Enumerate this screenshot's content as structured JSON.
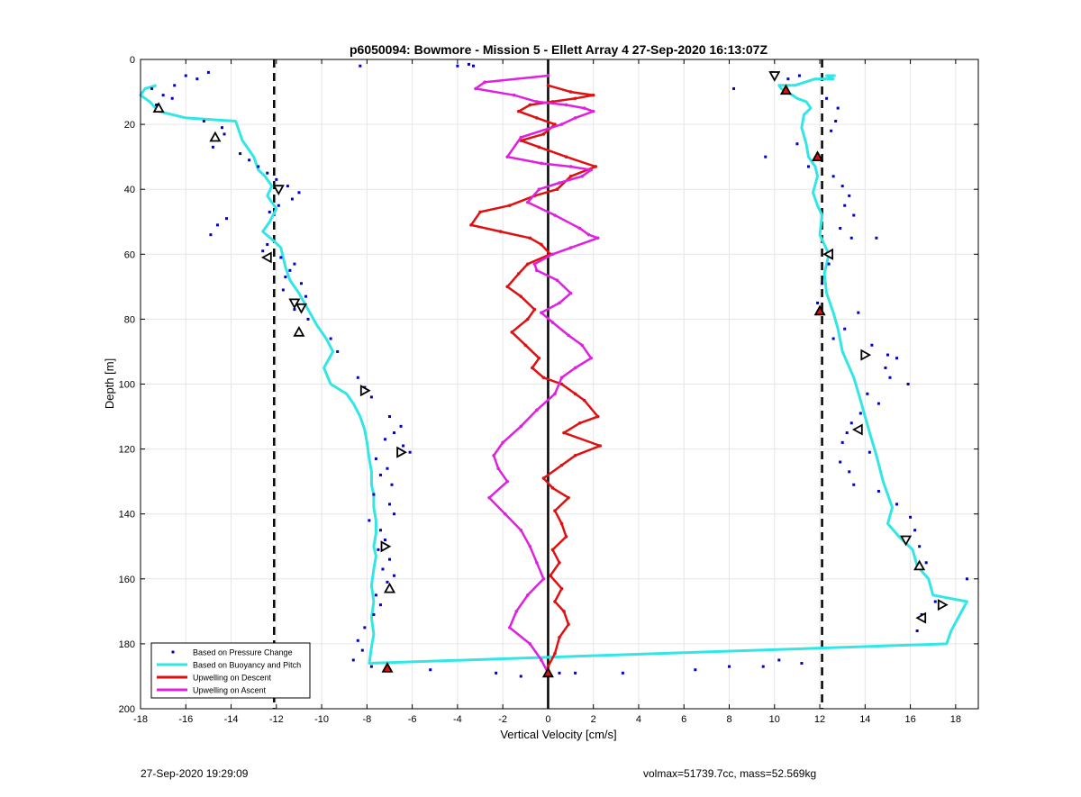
{
  "footer": {
    "timestamp": "27-Sep-2020 19:29:09",
    "params": "volmax=51739.7cc, mass=52.569kg"
  },
  "chart_data": {
    "type": "line",
    "title": "p6050094: Bowmore - Mission 5 - Ellett Array 4 27-Sep-2020 16:13:07Z",
    "xlabel": "Vertical Velocity [cm/s]",
    "ylabel": "Depth [m]",
    "xlim": [
      -18,
      19
    ],
    "ylim": [
      0,
      200
    ],
    "y_reversed": true,
    "grid": true,
    "xticks": [
      -18,
      -16,
      -14,
      -12,
      -10,
      -8,
      -6,
      -4,
      -2,
      0,
      2,
      4,
      6,
      8,
      10,
      12,
      14,
      16,
      18
    ],
    "yticks": [
      0,
      20,
      40,
      60,
      80,
      100,
      120,
      140,
      160,
      180,
      200
    ],
    "legend_position": "bottom-left",
    "colors": {
      "pressure": "#0000cc",
      "buoyancy": "#33e6e6",
      "descent": "#e01010",
      "ascent": "#e020e0"
    },
    "reference_lines": [
      {
        "x": -12.1,
        "style": "dashed"
      },
      {
        "x": 12.1,
        "style": "dashed"
      },
      {
        "x": 0,
        "style": "solid"
      }
    ],
    "series": [
      {
        "name": "Based on Pressure Change",
        "style": "markers",
        "x": [
          -8.3,
          -15,
          -16,
          -15.5,
          -16.5,
          -17.5,
          -17,
          -16.6,
          -17.3,
          -15.2,
          -14.4,
          -14.3,
          -14.8,
          -13.6,
          -13.2,
          -12.8,
          -12.4,
          -12.0,
          -11.5,
          -11.0,
          -11.3,
          -11.9,
          -12.3,
          -14.2,
          -14.6,
          -14.9,
          -12.4,
          -12.6,
          -11.8,
          -11.2,
          -11.4,
          -11.6,
          -10.9,
          -11.7,
          -10.7,
          -11.2,
          -10.6,
          -9.6,
          -9.3,
          -8.4,
          -8.1,
          -7.8,
          -7.0,
          -6.5,
          -6.8,
          -7.2,
          -6.4,
          -6.1,
          -7.6,
          -7.1,
          -7.4,
          -6.9,
          -7.7,
          -7.0,
          -6.8,
          -7.9,
          -7.4,
          -7.2,
          -7.5,
          -7.0,
          -7.3,
          -6.8,
          -7.1,
          -7.6,
          -7.4,
          -7.7,
          -8.1,
          -8.4,
          -8.2,
          -8.6,
          -7.8,
          -5.2,
          -2.3,
          -1.2,
          0.5,
          1.2,
          3.3,
          6.5,
          8.0,
          9.5,
          11.2,
          10.2,
          9.9,
          11.1,
          10.6,
          8.2,
          12.3,
          12.8,
          12.7,
          12.5,
          11.0,
          9.6,
          11.5,
          12.6,
          13.0,
          13.3,
          13.1,
          13.5,
          12.9,
          13.4,
          14.5,
          12.4,
          12.1,
          11.9,
          13.7,
          13.1,
          12.6,
          14.3,
          15.0,
          15.4,
          14.9,
          15.1,
          15.9,
          14.1,
          14.6,
          13.8,
          13.4,
          13.2,
          13.0,
          14.2,
          12.9,
          13.3,
          13.5,
          14.6,
          15.4,
          16.0,
          16.2,
          16.4,
          16.7,
          18.5,
          17.1,
          16.5,
          16.3,
          -4.0,
          -3.5,
          -3.3
        ],
        "y": [
          2,
          4,
          5,
          6,
          8,
          9,
          11,
          12,
          14,
          19,
          21,
          23,
          27,
          29,
          31,
          33,
          35,
          37,
          39,
          41,
          43,
          45,
          47,
          49,
          51,
          54,
          57,
          59,
          61,
          63,
          65,
          67,
          69,
          71,
          73,
          77,
          80,
          86,
          90,
          98,
          101,
          104,
          110,
          113,
          115,
          117,
          119,
          121,
          123,
          126,
          128,
          131,
          134,
          137,
          140,
          142,
          145,
          148,
          151,
          154,
          157,
          159,
          161,
          165,
          168,
          171,
          175,
          179,
          182,
          185,
          187,
          188,
          189,
          190,
          189,
          189,
          189,
          188,
          187,
          187,
          186,
          185,
          4,
          5,
          6,
          9,
          12,
          15,
          19,
          22,
          26,
          30,
          33,
          36,
          39,
          42,
          45,
          48,
          52,
          55,
          55,
          63,
          69,
          75,
          78,
          83,
          86,
          88,
          91,
          92,
          95,
          98,
          100,
          103,
          106,
          109,
          112,
          115,
          118,
          121,
          124,
          127,
          131,
          133,
          137,
          141,
          145,
          150,
          155,
          160,
          167,
          171,
          176,
          2,
          1.5,
          2
        ]
      },
      {
        "name": "Based on Buoyancy and Pitch",
        "style": "line",
        "x": [
          -17.3,
          -17.8,
          -18.0,
          -17.6,
          -17.2,
          -16.0,
          -13.8,
          -13.5,
          -13.0,
          -12.8,
          -12.5,
          -12.2,
          -12.4,
          -12.0,
          -12.3,
          -12.6,
          -12.1,
          -11.8,
          -11.6,
          -11.4,
          -11.0,
          -10.6,
          -10.2,
          -9.8,
          -9.5,
          -9.9,
          -9.6,
          -8.9,
          -8.6,
          -8.3,
          -8.1,
          -8.0,
          -7.9,
          -7.8,
          -7.8,
          -7.7,
          -7.7,
          -7.6,
          -7.6,
          -7.7,
          -7.6,
          -7.7,
          -7.8,
          -7.7,
          -7.8,
          -7.7,
          -7.8,
          -7.9,
          17.6,
          17.8,
          18.5,
          17.0,
          16.8,
          16.3,
          16.1,
          15.5,
          15.0,
          15.2,
          14.8,
          14.5,
          14.2,
          14.0,
          13.8,
          13.5,
          13.0,
          12.8,
          12.6,
          12.3,
          12.2,
          12.4,
          12.0,
          12.1,
          11.9,
          11.7,
          11.9,
          11.8,
          11.5,
          11.4,
          11.2,
          11.3,
          11.6,
          11.4,
          11.0,
          10.8,
          10.5,
          10.3,
          10.2,
          10.9,
          11.8,
          12.6,
          12.3,
          12.7
        ],
        "y": [
          8,
          9,
          11,
          13,
          16,
          18,
          19,
          25,
          30,
          34,
          36,
          39,
          42,
          46,
          50,
          53,
          56,
          58,
          64,
          68,
          72,
          77,
          82,
          86,
          90,
          95,
          100,
          103,
          106,
          110,
          114,
          118,
          123,
          127,
          131,
          134,
          138,
          142,
          146,
          150,
          153,
          157,
          162,
          167,
          172,
          177,
          181,
          186,
          180,
          176,
          167,
          165,
          160,
          156,
          151,
          147,
          143,
          138,
          130,
          122,
          115,
          110,
          105,
          98,
          90,
          83,
          78,
          72,
          66,
          60,
          54,
          48,
          45,
          41,
          36,
          33,
          30,
          26,
          21,
          17,
          15,
          13,
          12,
          11,
          10,
          9,
          8,
          8,
          6,
          6,
          5,
          5
        ]
      },
      {
        "name": "Upwelling on Descent",
        "style": "line-markers",
        "x": [
          0,
          1.0,
          2.0,
          1.2,
          0.2,
          -0.8,
          -1.3,
          -0.5,
          0.3,
          -0.2,
          -1.2,
          -0.4,
          0.8,
          2.1,
          1.0,
          0.4,
          -0.6,
          -1.7,
          -3.0,
          -3.4,
          -2.1,
          -0.8,
          -0.3,
          0.1,
          -0.9,
          -1.3,
          -1.8,
          -1.2,
          -0.6,
          -0.9,
          -1.6,
          -1.0,
          -0.4,
          -0.7,
          -0.2,
          0.6,
          1.2,
          1.6,
          2.2,
          1.4,
          0.7,
          2.3,
          1.2,
          0.6,
          -0.2,
          0.2,
          0.9,
          0.3,
          0.6,
          0.8,
          0.2,
          0.5,
          0.1,
          0.6,
          0.3,
          0.7,
          0.9,
          0.5,
          0.3,
          0.0
        ],
        "y": [
          8,
          10,
          11,
          12,
          13,
          14,
          16,
          18,
          20,
          23,
          25,
          27,
          30,
          33,
          36,
          40,
          42,
          45,
          47,
          51,
          53,
          55,
          57,
          60,
          63,
          66,
          70,
          73,
          77,
          80,
          84,
          88,
          92,
          95,
          98,
          100,
          103,
          105,
          110,
          112,
          115,
          119,
          122,
          125,
          129,
          132,
          135,
          139,
          143,
          147,
          151,
          155,
          159,
          163,
          167,
          170,
          174,
          178,
          183,
          187
        ]
      },
      {
        "name": "Upwelling on Ascent",
        "style": "line-markers",
        "x": [
          0,
          -2.8,
          -3.2,
          -1.5,
          -0.5,
          0.8,
          1.6,
          2.0,
          1.2,
          0.6,
          -1.2,
          -1.8,
          -0.3,
          1.0,
          1.9,
          1.5,
          0.5,
          -0.4,
          -0.9,
          0.3,
          1.4,
          1.8,
          2.2,
          1.0,
          0.2,
          -0.6,
          -0.5,
          0.4,
          1.0,
          0.5,
          -0.3,
          0.2,
          0.9,
          1.5,
          1.9,
          1.2,
          0.6,
          0.3,
          -0.5,
          -1.2,
          -2.0,
          -2.4,
          -2.2,
          -1.8,
          -2.6,
          -1.9,
          -1.2,
          -0.8,
          -0.5,
          -0.2,
          -0.9,
          -1.4,
          -1.7,
          -0.8,
          -0.3,
          0.0
        ],
        "y": [
          5,
          7,
          9,
          11,
          13,
          14,
          15,
          16,
          18,
          20,
          24,
          30,
          32,
          33,
          34,
          36,
          38,
          40,
          44,
          48,
          52,
          54,
          55,
          58,
          60,
          63,
          65,
          68,
          72,
          75,
          78,
          81,
          85,
          88,
          92,
          95,
          98,
          103,
          108,
          113,
          118,
          122,
          126,
          130,
          135,
          140,
          145,
          150,
          155,
          160,
          165,
          170,
          175,
          180,
          185,
          189
        ]
      }
    ],
    "markers": [
      {
        "x": 10.0,
        "y": 5,
        "shape": "triangle-down",
        "fill": "#ffffff"
      },
      {
        "x": 10.5,
        "y": 9.5,
        "shape": "triangle-up",
        "fill": "#e01010"
      },
      {
        "x": -17.2,
        "y": 15,
        "shape": "triangle-up",
        "fill": "#ffffff"
      },
      {
        "x": -14.7,
        "y": 24,
        "shape": "triangle-up",
        "fill": "#ffffff"
      },
      {
        "x": 11.9,
        "y": 30,
        "shape": "triangle-up",
        "fill": "#e01010"
      },
      {
        "x": -11.9,
        "y": 40,
        "shape": "triangle-down",
        "fill": "#ffffff"
      },
      {
        "x": -12.4,
        "y": 61,
        "shape": "triangle-left",
        "fill": "#ffffff"
      },
      {
        "x": 12.4,
        "y": 60,
        "shape": "triangle-left",
        "fill": "#ffffff"
      },
      {
        "x": -11.2,
        "y": 75,
        "shape": "triangle-down",
        "fill": "#ffffff"
      },
      {
        "x": -10.9,
        "y": 76.5,
        "shape": "triangle-down",
        "fill": "#ffffff"
      },
      {
        "x": -11.0,
        "y": 84,
        "shape": "triangle-up",
        "fill": "#ffffff"
      },
      {
        "x": 12.0,
        "y": 77.5,
        "shape": "triangle-up",
        "fill": "#e01010"
      },
      {
        "x": 14.0,
        "y": 91,
        "shape": "triangle-right",
        "fill": "#ffffff"
      },
      {
        "x": -8.1,
        "y": 102,
        "shape": "triangle-right",
        "fill": "#ffffff"
      },
      {
        "x": 13.7,
        "y": 114,
        "shape": "triangle-left",
        "fill": "#ffffff"
      },
      {
        "x": -6.5,
        "y": 121,
        "shape": "triangle-right",
        "fill": "#ffffff"
      },
      {
        "x": 15.8,
        "y": 148,
        "shape": "triangle-down",
        "fill": "#ffffff"
      },
      {
        "x": -7.2,
        "y": 150,
        "shape": "triangle-right",
        "fill": "#ffffff"
      },
      {
        "x": 16.4,
        "y": 156,
        "shape": "triangle-up",
        "fill": "#ffffff"
      },
      {
        "x": -7.0,
        "y": 163,
        "shape": "triangle-up",
        "fill": "#ffffff"
      },
      {
        "x": 17.4,
        "y": 168,
        "shape": "triangle-right",
        "fill": "#ffffff"
      },
      {
        "x": 16.5,
        "y": 172,
        "shape": "triangle-left",
        "fill": "#ffffff"
      },
      {
        "x": -7.1,
        "y": 187.5,
        "shape": "triangle-up",
        "fill": "#e01010"
      },
      {
        "x": 0.0,
        "y": 189,
        "shape": "triangle-up",
        "fill": "#e01010"
      }
    ]
  }
}
